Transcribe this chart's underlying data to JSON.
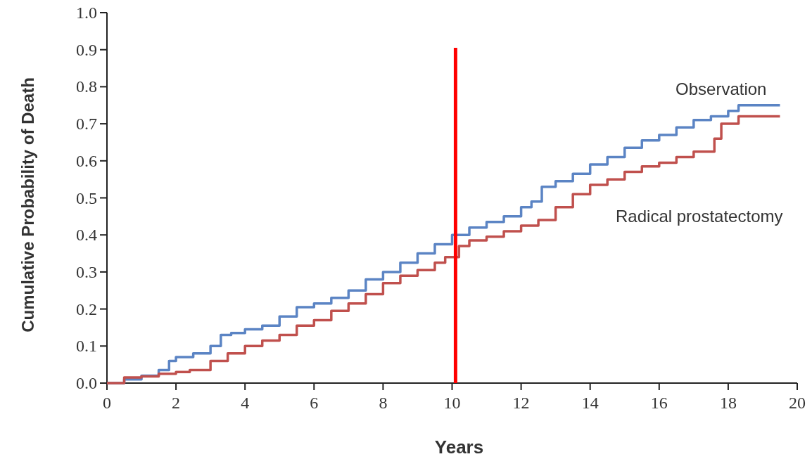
{
  "chart_data": {
    "type": "step",
    "xlabel": "Years",
    "ylabel": "Cumulative Probability of Death",
    "xlim": [
      0,
      20
    ],
    "xticks": [
      0,
      2,
      4,
      6,
      8,
      10,
      12,
      14,
      16,
      18,
      20
    ],
    "ylim": [
      0,
      1
    ],
    "yticks": [
      {
        "value": 0,
        "label": "0.0"
      },
      {
        "value": 0.1,
        "label": "0.1"
      },
      {
        "value": 0.2,
        "label": "0.2"
      },
      {
        "value": 0.3,
        "label": "0.3"
      },
      {
        "value": 0.4,
        "label": "0.4"
      },
      {
        "value": 0.5,
        "label": "0.5"
      },
      {
        "value": 0.6,
        "label": "0.6"
      },
      {
        "value": 0.7,
        "label": "0.7"
      },
      {
        "value": 0.8,
        "label": "0.8"
      },
      {
        "value": 0.9,
        "label": "0.9"
      },
      {
        "value": 1,
        "label": "1.0"
      }
    ],
    "series": [
      {
        "name": "Observation",
        "color": "#5b84c4",
        "x": [
          0,
          0.5,
          1,
          1.5,
          1.8,
          2,
          2.5,
          3,
          3.3,
          3.6,
          4,
          4.5,
          5,
          5.5,
          6,
          6.5,
          7,
          7.5,
          8,
          8.5,
          9,
          9.5,
          10,
          10.5,
          11,
          11.5,
          12,
          12.3,
          12.6,
          13,
          13.5,
          14,
          14.5,
          15,
          15.5,
          16,
          16.5,
          17,
          17.5,
          18,
          18.3,
          19.5
        ],
        "values": [
          0,
          0.01,
          0.02,
          0.035,
          0.06,
          0.07,
          0.08,
          0.1,
          0.13,
          0.135,
          0.145,
          0.155,
          0.18,
          0.205,
          0.215,
          0.23,
          0.25,
          0.28,
          0.3,
          0.325,
          0.35,
          0.375,
          0.4,
          0.42,
          0.435,
          0.45,
          0.475,
          0.49,
          0.53,
          0.545,
          0.565,
          0.59,
          0.61,
          0.635,
          0.655,
          0.67,
          0.69,
          0.71,
          0.72,
          0.735,
          0.75,
          0.75
        ]
      },
      {
        "name": "Radical prostatectomy",
        "color": "#c0504d",
        "x": [
          0,
          0.5,
          1,
          1.5,
          2,
          2.4,
          3,
          3.5,
          4,
          4.5,
          5,
          5.5,
          6,
          6.5,
          7,
          7.5,
          8,
          8.5,
          9,
          9.5,
          9.8,
          10.2,
          10.5,
          11,
          11.5,
          12,
          12.5,
          13,
          13.5,
          14,
          14.5,
          15,
          15.5,
          16,
          16.5,
          17,
          17.3,
          17.6,
          17.8,
          18.3,
          19.5
        ],
        "values": [
          0,
          0.015,
          0.018,
          0.025,
          0.03,
          0.035,
          0.06,
          0.08,
          0.1,
          0.115,
          0.13,
          0.155,
          0.17,
          0.195,
          0.215,
          0.24,
          0.27,
          0.29,
          0.305,
          0.325,
          0.34,
          0.37,
          0.385,
          0.395,
          0.41,
          0.425,
          0.44,
          0.475,
          0.51,
          0.535,
          0.55,
          0.57,
          0.585,
          0.595,
          0.61,
          0.625,
          0.625,
          0.66,
          0.7,
          0.72,
          0.72
        ]
      }
    ],
    "ref_lines": [
      {
        "axis": "x",
        "value": 10.1,
        "color": "#ff0000",
        "line_style": "solid"
      }
    ]
  }
}
